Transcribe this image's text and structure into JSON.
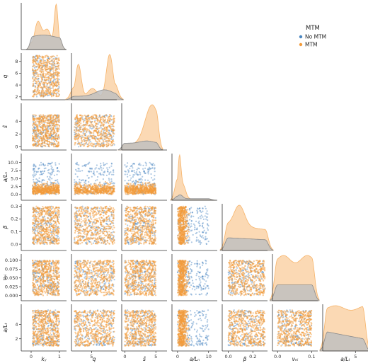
{
  "chart_data": {
    "type": "scatter",
    "plot_kind": "pairplot (corner) with KDE diagonals",
    "variables": [
      "k_y",
      "q",
      "ŝ",
      "a/L_n",
      "β",
      "ν_ei",
      "a/L_T"
    ],
    "variable_labels": [
      "$k_y$",
      "$q$",
      "$\\hat{s}$",
      "$a/L_n$",
      "$\\beta$",
      "$\\nu_{ei}$",
      "$a/L_T$"
    ],
    "display_labels": [
      "kᵧ",
      "q",
      "ŝ",
      "a/Lₙ",
      "β",
      "νₑᵢ",
      "a/Lₜ"
    ],
    "ranges": {
      "k_y": [
        0.05,
        1.0
      ],
      "q": [
        2,
        9
      ],
      "ŝ": [
        0,
        5
      ],
      "a/L_n": [
        0,
        10
      ],
      "β": [
        0,
        0.3
      ],
      "ν_ei": [
        0,
        0.1
      ],
      "a/L_T": [
        1,
        6
      ]
    },
    "axis_limits": [
      [
        -0.35,
        1.25
      ],
      [
        1.5,
        9.4
      ],
      [
        -0.5,
        6.8
      ],
      [
        -1.8,
        12.8
      ],
      [
        -0.05,
        0.32
      ],
      [
        -0.015,
        0.118
      ],
      [
        0.3,
        6.8
      ]
    ],
    "x_ticks": [
      [
        0,
        1
      ],
      [
        5
      ],
      [
        0,
        5
      ],
      [
        0,
        10
      ],
      [
        0.0,
        0.2
      ],
      [
        0.0,
        0.1
      ],
      [
        5
      ]
    ],
    "x_tick_labels": [
      [
        "0",
        "1"
      ],
      [
        "5"
      ],
      [
        "0",
        "5"
      ],
      [
        "0",
        "10"
      ],
      [
        "0.0",
        "0.2"
      ],
      [
        "0.0",
        "0.1"
      ],
      [
        "5"
      ]
    ],
    "y_ticks": [
      [],
      [
        2,
        4,
        6,
        8
      ],
      [
        0,
        2,
        4
      ],
      [
        0.0,
        2.5,
        5.0,
        7.5,
        10.0
      ],
      [
        0.0,
        0.1,
        0.2,
        0.3
      ],
      [
        0.0,
        0.025,
        0.05,
        0.075,
        0.1
      ],
      [
        2,
        4
      ]
    ],
    "y_tick_labels": [
      [],
      [
        "2",
        "4",
        "6",
        "8"
      ],
      [
        "0",
        "2",
        "4"
      ],
      [
        "0.0",
        "2.5",
        "5.0",
        "7.5",
        "10.0"
      ],
      [
        "0.0",
        "0.1",
        "0.2",
        "0.3"
      ],
      [
        "0.000",
        "0.025",
        "0.050",
        "0.075",
        "0.100"
      ],
      [
        "2",
        "4"
      ]
    ],
    "legend": {
      "title": "MTM",
      "entries": [
        "No MTM",
        "MTM"
      ],
      "placement": "upper-right"
    },
    "series": [
      {
        "name": "No MTM",
        "color": "#4a86c0",
        "relative_count": 0.25,
        "a_over_Ln_typical": [
          0,
          10
        ]
      },
      {
        "name": "MTM",
        "color": "#f39b3a",
        "relative_count": 0.75,
        "a_over_Ln_typical": [
          0,
          4
        ]
      }
    ],
    "kde_peaks": {
      "k_y": {
        "MTM": 1.0,
        "No MTM": 0.32
      },
      "q": {
        "MTM": 1.0,
        "No MTM": 0.22
      },
      "ŝ": {
        "MTM": 1.0,
        "No MTM": 0.2
      },
      "a/L_n": {
        "MTM": 1.0,
        "No MTM": 0.12
      },
      "β": {
        "MTM": 1.0,
        "No MTM": 0.28
      },
      "ν_ei": {
        "MTM": 1.0,
        "No MTM": 0.35
      },
      "a/L_T": {
        "MTM": 1.0,
        "No MTM": 0.42
      }
    },
    "grid": false,
    "title": ""
  }
}
